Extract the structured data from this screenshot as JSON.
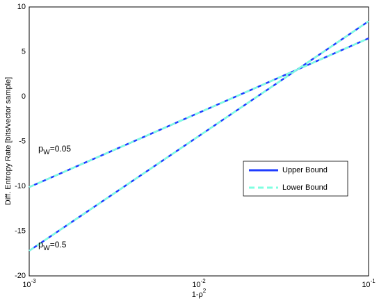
{
  "chart_data": {
    "type": "line",
    "xlabel": {
      "text": "1-ρ",
      "sup": "2"
    },
    "ylabel": "Diff. Entropy Rate [bits/vector sample]",
    "x": [
      0.001,
      0.01,
      0.1
    ],
    "series": [
      {
        "name": "Upper Bound",
        "color": "#1f3cff",
        "dashed": false,
        "values": [
          [
            -10.1,
            -1.8,
            6.5
          ],
          [
            -17.2,
            -4.4,
            8.4
          ]
        ]
      },
      {
        "name": "Lower Bound",
        "color": "#7fffe0",
        "dashed": true,
        "values": [
          [
            -10.1,
            -1.8,
            6.5
          ],
          [
            -17.2,
            -4.4,
            8.4
          ]
        ]
      }
    ],
    "annotations": [
      {
        "base": "p",
        "sub": "W",
        "text": "=0.05"
      },
      {
        "base": "p",
        "sub": "W",
        "text": "=0.5"
      }
    ],
    "xlog": true,
    "xlim": [
      0.001,
      0.1
    ],
    "xticks": [
      {
        "value": 0.001,
        "label": "10",
        "exponent": "-3"
      },
      {
        "value": 0.01,
        "label": "10",
        "exponent": "-2"
      },
      {
        "value": 0.1,
        "label": "10",
        "exponent": "-1"
      }
    ],
    "ylim": [
      -20,
      10
    ],
    "yticks": [
      -20,
      -15,
      -10,
      -5,
      0,
      5,
      10
    ],
    "grid": true,
    "legend": "lower-right"
  }
}
